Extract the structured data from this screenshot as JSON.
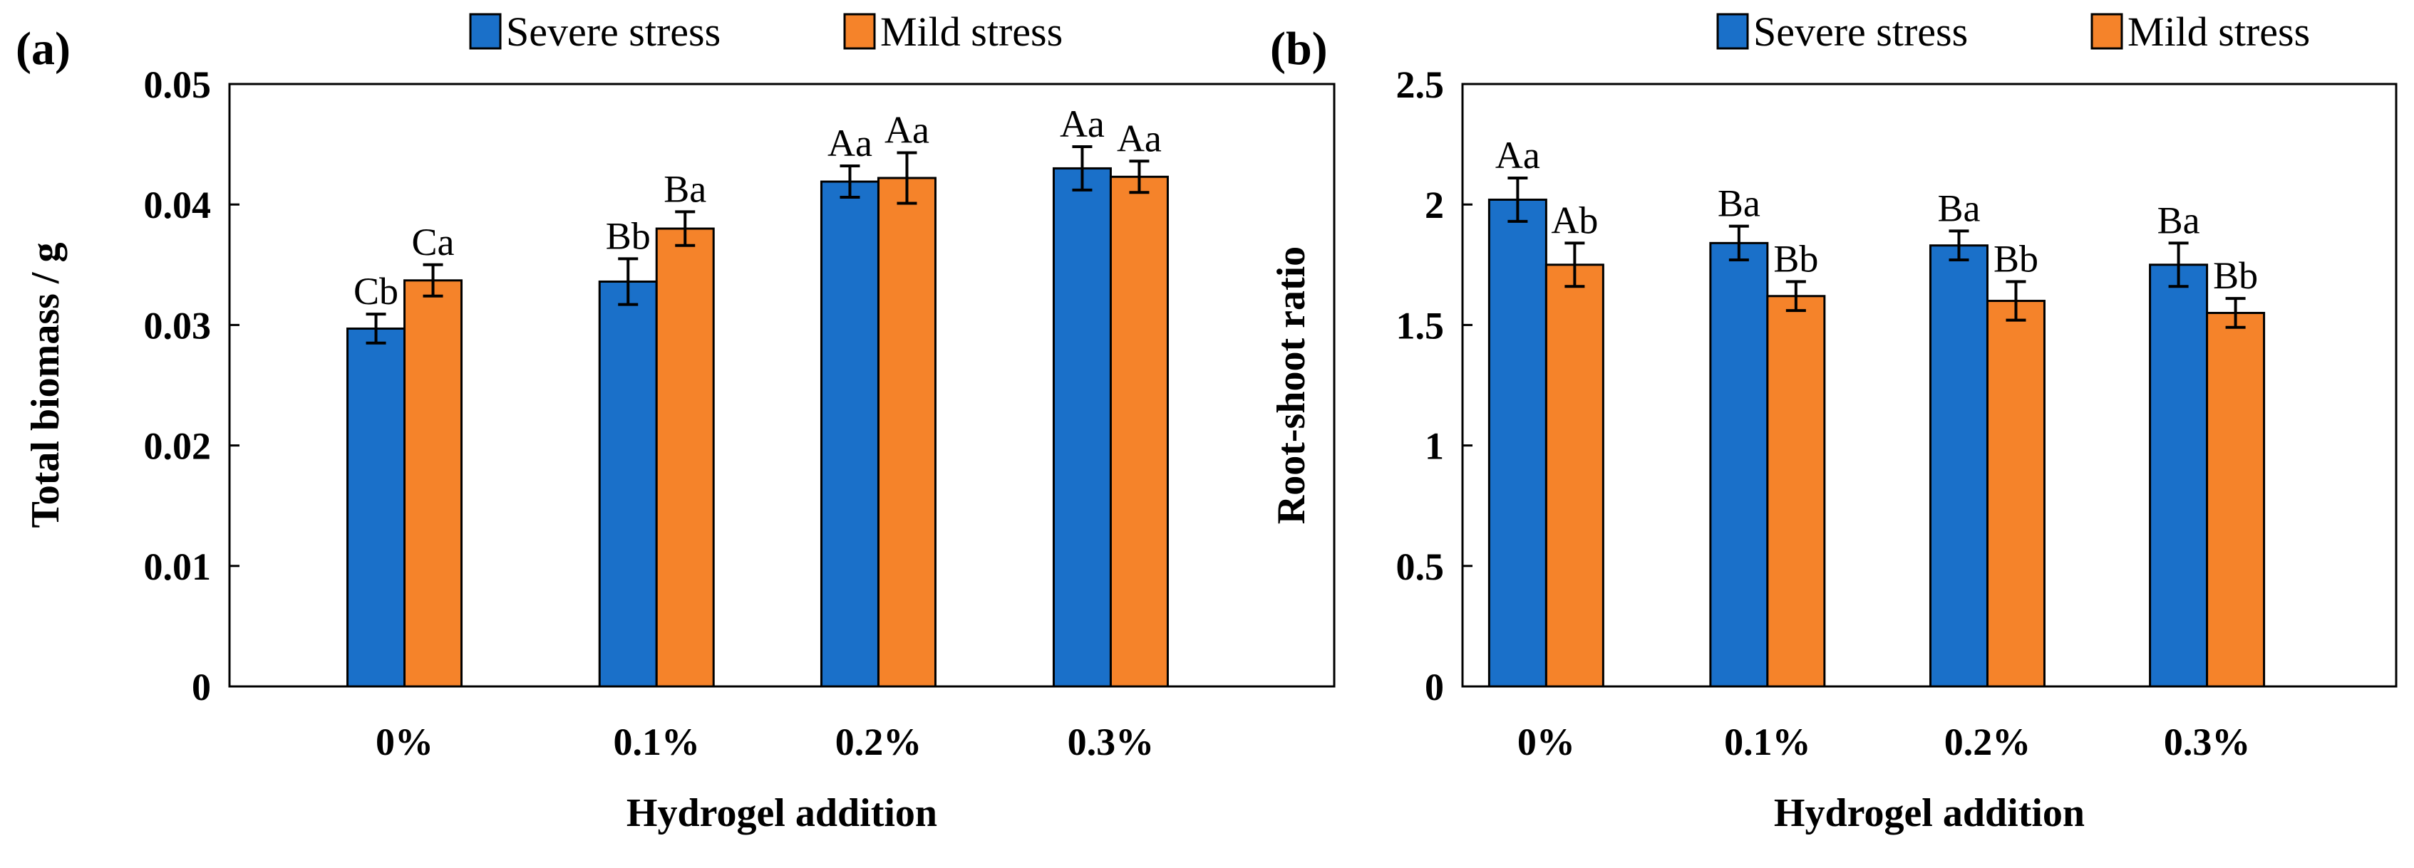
{
  "chart_data": [
    {
      "type": "bar",
      "panel_label": "(a)",
      "title": "",
      "categories": [
        "0%",
        "0.1%",
        "0.2%",
        "0.3%"
      ],
      "series": [
        {
          "name": "Severe stress",
          "color": "#1a70c9",
          "values": [
            0.0297,
            0.0336,
            0.0419,
            0.043
          ],
          "errors": [
            0.0012,
            0.0019,
            0.0013,
            0.0018
          ],
          "labels": [
            "Cb",
            "Bb",
            "Aa",
            "Aa"
          ]
        },
        {
          "name": "Mild stress",
          "color": "#f5832a",
          "values": [
            0.0337,
            0.038,
            0.0422,
            0.0423
          ],
          "errors": [
            0.0013,
            0.0014,
            0.0021,
            0.0013
          ],
          "labels": [
            "Ca",
            "Ba",
            "Aa",
            "Aa"
          ]
        }
      ],
      "xlabel": "Hydrogel addition",
      "ylabel": "Total biomass / g",
      "ylim": [
        0,
        0.05
      ],
      "yticks": [
        "0",
        "0.01",
        "0.02",
        "0.03",
        "0.04",
        "0.05"
      ],
      "ytick_values": [
        0,
        0.01,
        0.02,
        0.03,
        0.04,
        0.05
      ],
      "grid": false,
      "legend_position": "top-right"
    },
    {
      "type": "bar",
      "panel_label": "(b)",
      "title": "",
      "categories": [
        "0%",
        "0.1%",
        "0.2%",
        "0.3%"
      ],
      "series": [
        {
          "name": "Severe stress",
          "color": "#1a70c9",
          "values": [
            2.02,
            1.84,
            1.83,
            1.75
          ],
          "errors": [
            0.09,
            0.07,
            0.06,
            0.09
          ],
          "labels": [
            "Aa",
            "Ba",
            "Ba",
            "Ba"
          ]
        },
        {
          "name": "Mild stress",
          "color": "#f5832a",
          "values": [
            1.75,
            1.62,
            1.6,
            1.55
          ],
          "errors": [
            0.09,
            0.06,
            0.08,
            0.06
          ],
          "labels": [
            "Ab",
            "Bb",
            "Bb",
            "Bb"
          ]
        }
      ],
      "xlabel": "Hydrogel addition",
      "ylabel": "Root-shoot ratio",
      "ylim": [
        0,
        2.5
      ],
      "yticks": [
        "0",
        "0.5",
        "1",
        "1.5",
        "2",
        "2.5"
      ],
      "ytick_values": [
        0,
        0.5,
        1,
        1.5,
        2,
        2.5
      ],
      "grid": false,
      "legend_position": "top-right"
    }
  ]
}
